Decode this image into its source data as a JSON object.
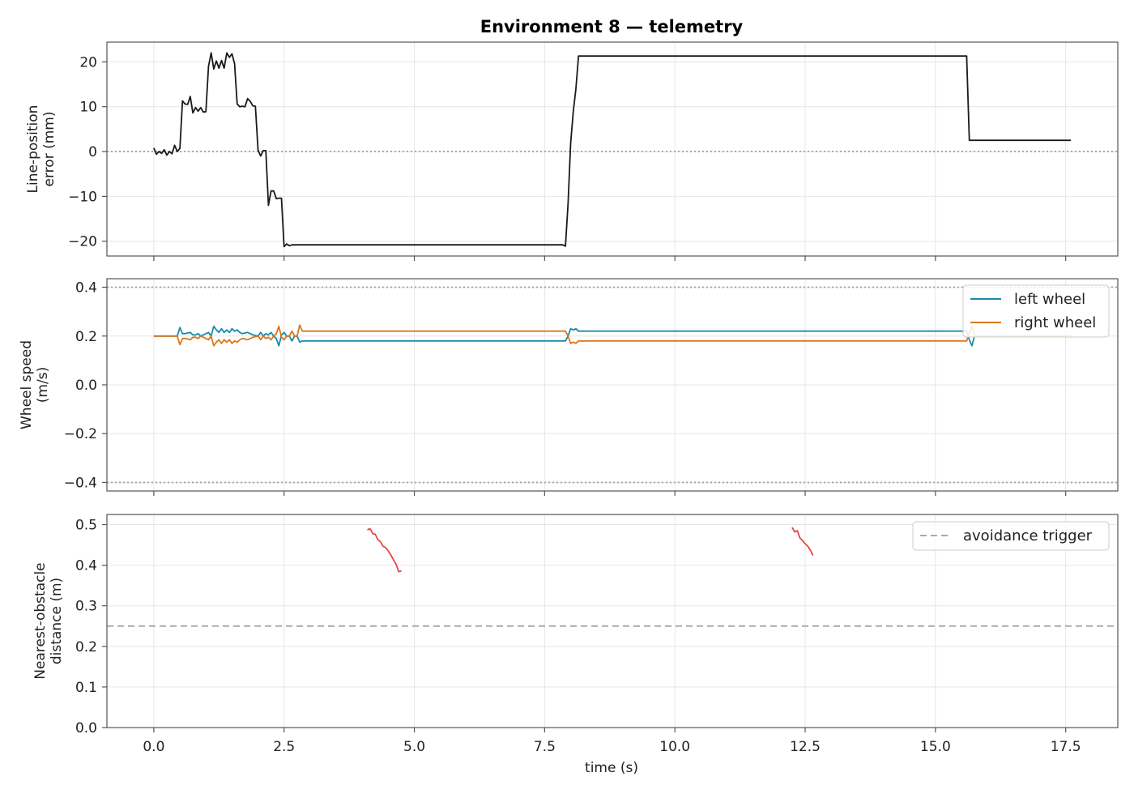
{
  "title": "Environment 8 — telemetry",
  "xlabel": "time (s)",
  "xlim": [
    -0.9,
    18.5
  ],
  "xticks": [
    0.0,
    2.5,
    5.0,
    7.5,
    10.0,
    12.5,
    15.0,
    17.5
  ],
  "xtick_labels": [
    "0.0",
    "2.5",
    "5.0",
    "7.5",
    "10.0",
    "12.5",
    "15.0",
    "17.5"
  ],
  "colors": {
    "error_line": "#1a1a1a",
    "left_wheel": "#1a8ca8",
    "right_wheel": "#d9771e",
    "obstacle": "#e04848",
    "reference": "#aaaaaa",
    "grid": "#e6e6e6",
    "spine": "#555555"
  },
  "chart_data": [
    {
      "type": "line",
      "name": "line-error",
      "ylabel_lines": [
        "Line-position",
        "error (mm)"
      ],
      "ylim": [
        -23.3,
        24.4
      ],
      "yticks": [
        20,
        10,
        0,
        -10,
        -20
      ],
      "ytick_labels": [
        "20",
        "10",
        "0",
        "−10",
        "−20"
      ],
      "reference_lines": [
        {
          "y": 0,
          "style": "dotted"
        }
      ],
      "series": [
        {
          "key": "error",
          "x": [
            0.0,
            0.05,
            0.1,
            0.15,
            0.2,
            0.25,
            0.3,
            0.35,
            0.4,
            0.45,
            0.5,
            0.55,
            0.6,
            0.65,
            0.7,
            0.75,
            0.8,
            0.85,
            0.9,
            0.95,
            1.0,
            1.05,
            1.1,
            1.15,
            1.2,
            1.25,
            1.3,
            1.35,
            1.4,
            1.45,
            1.5,
            1.55,
            1.6,
            1.65,
            1.7,
            1.75,
            1.8,
            1.85,
            1.9,
            1.95,
            2.0,
            2.05,
            2.1,
            2.15,
            2.2,
            2.25,
            2.3,
            2.35,
            2.4,
            2.45,
            2.5,
            2.55,
            2.6,
            2.65,
            2.7,
            2.75,
            2.8,
            2.9,
            3.0,
            4.0,
            5.0,
            6.0,
            7.0,
            7.85,
            7.9,
            7.95,
            8.0,
            8.05,
            8.1,
            8.15,
            8.2,
            9.0,
            10.0,
            11.0,
            12.0,
            13.0,
            14.0,
            15.0,
            15.6,
            15.65,
            15.7,
            16.5,
            17.0,
            17.6
          ],
          "y": [
            0.8,
            -0.6,
            0.0,
            -0.4,
            0.4,
            -0.8,
            0.0,
            -0.5,
            1.4,
            0.0,
            0.7,
            11.3,
            10.6,
            10.5,
            12.3,
            8.6,
            9.8,
            9.0,
            9.8,
            8.8,
            8.9,
            19.0,
            22.0,
            18.4,
            20.2,
            18.6,
            20.3,
            18.6,
            22.0,
            21.0,
            21.8,
            19.6,
            10.6,
            10.0,
            10.1,
            10.0,
            11.8,
            11.2,
            10.2,
            10.1,
            0.3,
            -1.0,
            0.2,
            0.2,
            -12.0,
            -8.8,
            -8.8,
            -10.5,
            -10.4,
            -10.4,
            -21.2,
            -20.6,
            -21.0,
            -20.8,
            -20.8,
            -20.8,
            -20.8,
            -20.8,
            -20.8,
            -20.8,
            -20.8,
            -20.8,
            -20.8,
            -20.8,
            -21.1,
            -11.7,
            1.8,
            9.0,
            14.0,
            21.3,
            21.3,
            21.3,
            21.3,
            21.3,
            21.3,
            21.3,
            21.3,
            21.3,
            21.3,
            2.5,
            2.5,
            2.5,
            2.5,
            2.5
          ]
        }
      ]
    },
    {
      "type": "line",
      "name": "wheel-speed",
      "ylabel_lines": [
        "Wheel speed",
        "(m/s)"
      ],
      "ylim": [
        -0.435,
        0.435
      ],
      "yticks": [
        0.4,
        0.2,
        0.0,
        -0.2,
        -0.4
      ],
      "ytick_labels": [
        "0.4",
        "0.2",
        "0.0",
        "−0.2",
        "−0.4"
      ],
      "reference_lines": [
        {
          "y": 0.4,
          "style": "dotted"
        },
        {
          "y": -0.4,
          "style": "dotted"
        }
      ],
      "legend": {
        "placement": "top-right",
        "entries": [
          "left wheel",
          "right wheel"
        ]
      },
      "series": [
        {
          "key": "left",
          "name": "left wheel",
          "x": [
            0.0,
            0.1,
            0.2,
            0.3,
            0.4,
            0.45,
            0.5,
            0.55,
            0.6,
            0.7,
            0.75,
            0.8,
            0.85,
            0.9,
            1.0,
            1.05,
            1.1,
            1.15,
            1.2,
            1.25,
            1.3,
            1.35,
            1.4,
            1.45,
            1.5,
            1.55,
            1.6,
            1.65,
            1.7,
            1.8,
            1.9,
            2.0,
            2.05,
            2.1,
            2.15,
            2.2,
            2.25,
            2.3,
            2.35,
            2.4,
            2.45,
            2.5,
            2.55,
            2.6,
            2.65,
            2.7,
            2.75,
            2.8,
            2.85,
            2.9,
            3.0,
            4.0,
            5.0,
            6.0,
            7.0,
            7.9,
            7.95,
            8.0,
            8.05,
            8.1,
            8.15,
            8.2,
            8.3,
            9.0,
            10.0,
            11.0,
            12.0,
            13.0,
            14.0,
            15.0,
            15.6,
            15.65,
            15.7,
            15.75,
            15.8,
            16.5,
            17.6
          ],
          "y": [
            0.2,
            0.2,
            0.2,
            0.2,
            0.2,
            0.2,
            0.235,
            0.21,
            0.21,
            0.215,
            0.205,
            0.205,
            0.21,
            0.2,
            0.21,
            0.215,
            0.2,
            0.24,
            0.225,
            0.215,
            0.23,
            0.215,
            0.225,
            0.215,
            0.23,
            0.22,
            0.225,
            0.215,
            0.21,
            0.215,
            0.205,
            0.2,
            0.215,
            0.2,
            0.21,
            0.205,
            0.215,
            0.2,
            0.19,
            0.16,
            0.205,
            0.215,
            0.2,
            0.2,
            0.18,
            0.2,
            0.2,
            0.175,
            0.18,
            0.18,
            0.18,
            0.18,
            0.18,
            0.18,
            0.18,
            0.18,
            0.2,
            0.23,
            0.225,
            0.23,
            0.22,
            0.22,
            0.22,
            0.22,
            0.22,
            0.22,
            0.22,
            0.22,
            0.22,
            0.22,
            0.22,
            0.185,
            0.16,
            0.2,
            0.2,
            0.2,
            0.2
          ]
        },
        {
          "key": "right",
          "name": "right wheel",
          "x": [
            0.0,
            0.1,
            0.2,
            0.3,
            0.4,
            0.45,
            0.5,
            0.55,
            0.6,
            0.7,
            0.75,
            0.8,
            0.85,
            0.9,
            1.0,
            1.05,
            1.1,
            1.15,
            1.2,
            1.25,
            1.3,
            1.35,
            1.4,
            1.45,
            1.5,
            1.55,
            1.6,
            1.65,
            1.7,
            1.8,
            1.9,
            2.0,
            2.05,
            2.1,
            2.15,
            2.2,
            2.25,
            2.3,
            2.35,
            2.4,
            2.45,
            2.5,
            2.55,
            2.6,
            2.65,
            2.7,
            2.75,
            2.8,
            2.85,
            2.9,
            3.0,
            4.0,
            5.0,
            6.0,
            7.0,
            7.9,
            7.95,
            8.0,
            8.05,
            8.1,
            8.15,
            8.2,
            8.3,
            9.0,
            10.0,
            11.0,
            12.0,
            13.0,
            14.0,
            15.0,
            15.6,
            15.65,
            15.7,
            15.75,
            15.8,
            16.5,
            17.6
          ],
          "y": [
            0.2,
            0.2,
            0.2,
            0.2,
            0.2,
            0.2,
            0.165,
            0.19,
            0.19,
            0.185,
            0.195,
            0.195,
            0.19,
            0.2,
            0.19,
            0.185,
            0.2,
            0.16,
            0.175,
            0.185,
            0.17,
            0.185,
            0.175,
            0.185,
            0.17,
            0.18,
            0.175,
            0.185,
            0.19,
            0.185,
            0.195,
            0.2,
            0.185,
            0.2,
            0.19,
            0.195,
            0.185,
            0.2,
            0.21,
            0.24,
            0.195,
            0.185,
            0.2,
            0.2,
            0.22,
            0.2,
            0.2,
            0.245,
            0.22,
            0.22,
            0.22,
            0.22,
            0.22,
            0.22,
            0.22,
            0.22,
            0.2,
            0.17,
            0.175,
            0.17,
            0.18,
            0.18,
            0.18,
            0.18,
            0.18,
            0.18,
            0.18,
            0.18,
            0.18,
            0.18,
            0.18,
            0.215,
            0.24,
            0.2,
            0.2,
            0.2,
            0.2
          ]
        }
      ]
    },
    {
      "type": "line",
      "name": "obstacle-distance",
      "ylabel_lines": [
        "Nearest-obstacle",
        "distance (m)"
      ],
      "ylim": [
        0.0,
        0.525
      ],
      "yticks": [
        0.5,
        0.4,
        0.3,
        0.2,
        0.1,
        0.0
      ],
      "ytick_labels": [
        "0.5",
        "0.4",
        "0.3",
        "0.2",
        "0.1",
        "0.0"
      ],
      "reference_lines": [
        {
          "y": 0.25,
          "style": "dashed",
          "legend": "avoidance trigger"
        }
      ],
      "legend": {
        "placement": "top-right",
        "entries": [
          "avoidance trigger"
        ]
      },
      "series": [
        {
          "key": "seg1",
          "x": [
            4.1,
            4.15,
            4.2,
            4.25,
            4.3,
            4.35,
            4.4,
            4.45,
            4.5,
            4.55,
            4.6,
            4.65,
            4.7,
            4.75
          ],
          "y": [
            0.487,
            0.49,
            0.478,
            0.476,
            0.463,
            0.458,
            0.447,
            0.443,
            0.435,
            0.425,
            0.413,
            0.402,
            0.384,
            0.386
          ]
        },
        {
          "key": "seg2",
          "x": [
            12.25,
            12.3,
            12.35,
            12.4,
            12.45,
            12.5,
            12.55,
            12.6,
            12.65
          ],
          "y": [
            0.493,
            0.482,
            0.485,
            0.467,
            0.461,
            0.453,
            0.447,
            0.437,
            0.424
          ]
        }
      ]
    }
  ]
}
